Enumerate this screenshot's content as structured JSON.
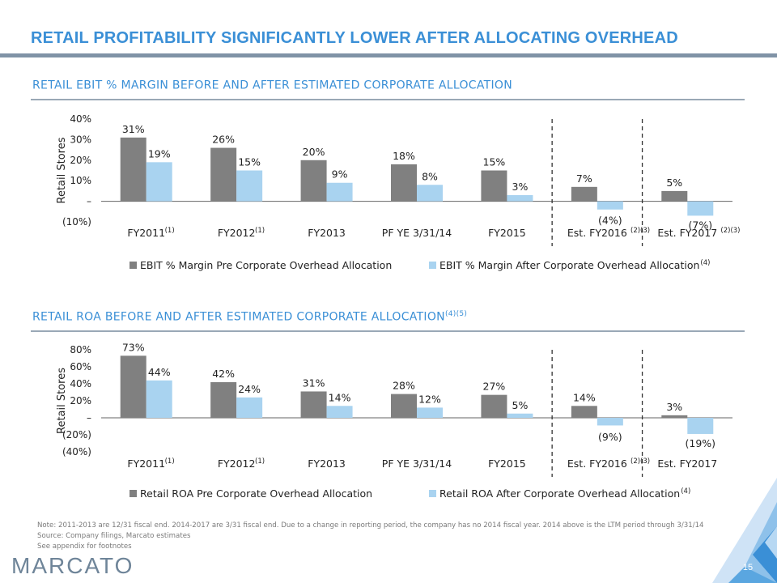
{
  "title": "RETAIL PROFITABILITY SIGNIFICANTLY LOWER AFTER ALLOCATING OVERHEAD",
  "page_number": "15",
  "logo_text": "MARCATO",
  "notes": [
    "Note: 2011-2013 are 12/31 fiscal end. 2014-2017 are 3/31 fiscal end. Due to a change in reporting period, the company has no 2014 fiscal year. 2014 above is the LTM period through 3/31/14",
    "Source: Company filings, Marcato estimates",
    "See appendix for footnotes"
  ],
  "colors": {
    "accent": "#3a8fd6",
    "pre": "#808080",
    "after": "#a9d3f0",
    "rule": "#8093a6"
  },
  "chart_data": [
    {
      "type": "bar",
      "title": "RETAIL EBIT % MARGIN BEFORE AND AFTER ESTIMATED CORPORATE ALLOCATION",
      "title_sup": "",
      "ylabel": "Retail Stores",
      "ylim": [
        -10,
        40
      ],
      "yticks": [
        40,
        30,
        20,
        10,
        0,
        -10
      ],
      "ytick_labels": [
        "40%",
        "30%",
        "20%",
        "10%",
        "–",
        "(10%)"
      ],
      "categories": [
        "FY2011",
        "FY2012",
        "FY2013",
        "PF YE 3/31/14",
        "FY2015",
        "Est. FY2016",
        "Est. FY2017"
      ],
      "category_sups": [
        "(1)",
        "(1)",
        "",
        "",
        "",
        "(2)(3)",
        "(2)(3)"
      ],
      "series": [
        {
          "name": "EBIT % Margin Pre Corporate Overhead Allocation",
          "name_sup": "",
          "values": [
            31,
            26,
            20,
            18,
            15,
            7,
            5
          ],
          "labels": [
            "31%",
            "26%",
            "20%",
            "18%",
            "15%",
            "7%",
            "5%"
          ]
        },
        {
          "name": "EBIT % Margin After Corporate Overhead Allocation",
          "name_sup": "(4)",
          "values": [
            19,
            15,
            9,
            8,
            3,
            -4,
            -7
          ],
          "labels": [
            "19%",
            "15%",
            "9%",
            "8%",
            "3%",
            "(4%)",
            "(7%)"
          ]
        }
      ],
      "dashed_dividers_between": [
        [
          4,
          5
        ],
        [
          5,
          6
        ]
      ],
      "legend": "bottom"
    },
    {
      "type": "bar",
      "title": "RETAIL ROA BEFORE AND AFTER ESTIMATED CORPORATE ALLOCATION",
      "title_sup": "(4)(5)",
      "ylabel": "Retail Stores",
      "ylim": [
        -40,
        80
      ],
      "yticks": [
        80,
        60,
        40,
        20,
        0,
        -20,
        -40
      ],
      "ytick_labels": [
        "80%",
        "60%",
        "40%",
        "20%",
        "–",
        "(20%)",
        "(40%)"
      ],
      "categories": [
        "FY2011",
        "FY2012",
        "FY2013",
        "PF YE 3/31/14",
        "FY2015",
        "Est. FY2016",
        "Est. FY2017"
      ],
      "category_sups": [
        "(1)",
        "(1)",
        "",
        "",
        "",
        "(2)(3)",
        ""
      ],
      "series": [
        {
          "name": "Retail ROA Pre Corporate Overhead Allocation",
          "name_sup": "",
          "values": [
            73,
            42,
            31,
            28,
            27,
            14,
            3
          ],
          "labels": [
            "73%",
            "42%",
            "31%",
            "28%",
            "27%",
            "14%",
            "3%"
          ]
        },
        {
          "name": "Retail ROA After Corporate Overhead Allocation",
          "name_sup": "(4)",
          "values": [
            44,
            24,
            14,
            12,
            5,
            -9,
            -19
          ],
          "labels": [
            "44%",
            "24%",
            "14%",
            "12%",
            "5%",
            "(9%)",
            "(19%)"
          ]
        }
      ],
      "dashed_dividers_between": [
        [
          4,
          5
        ],
        [
          5,
          6
        ]
      ],
      "legend": "bottom"
    }
  ]
}
